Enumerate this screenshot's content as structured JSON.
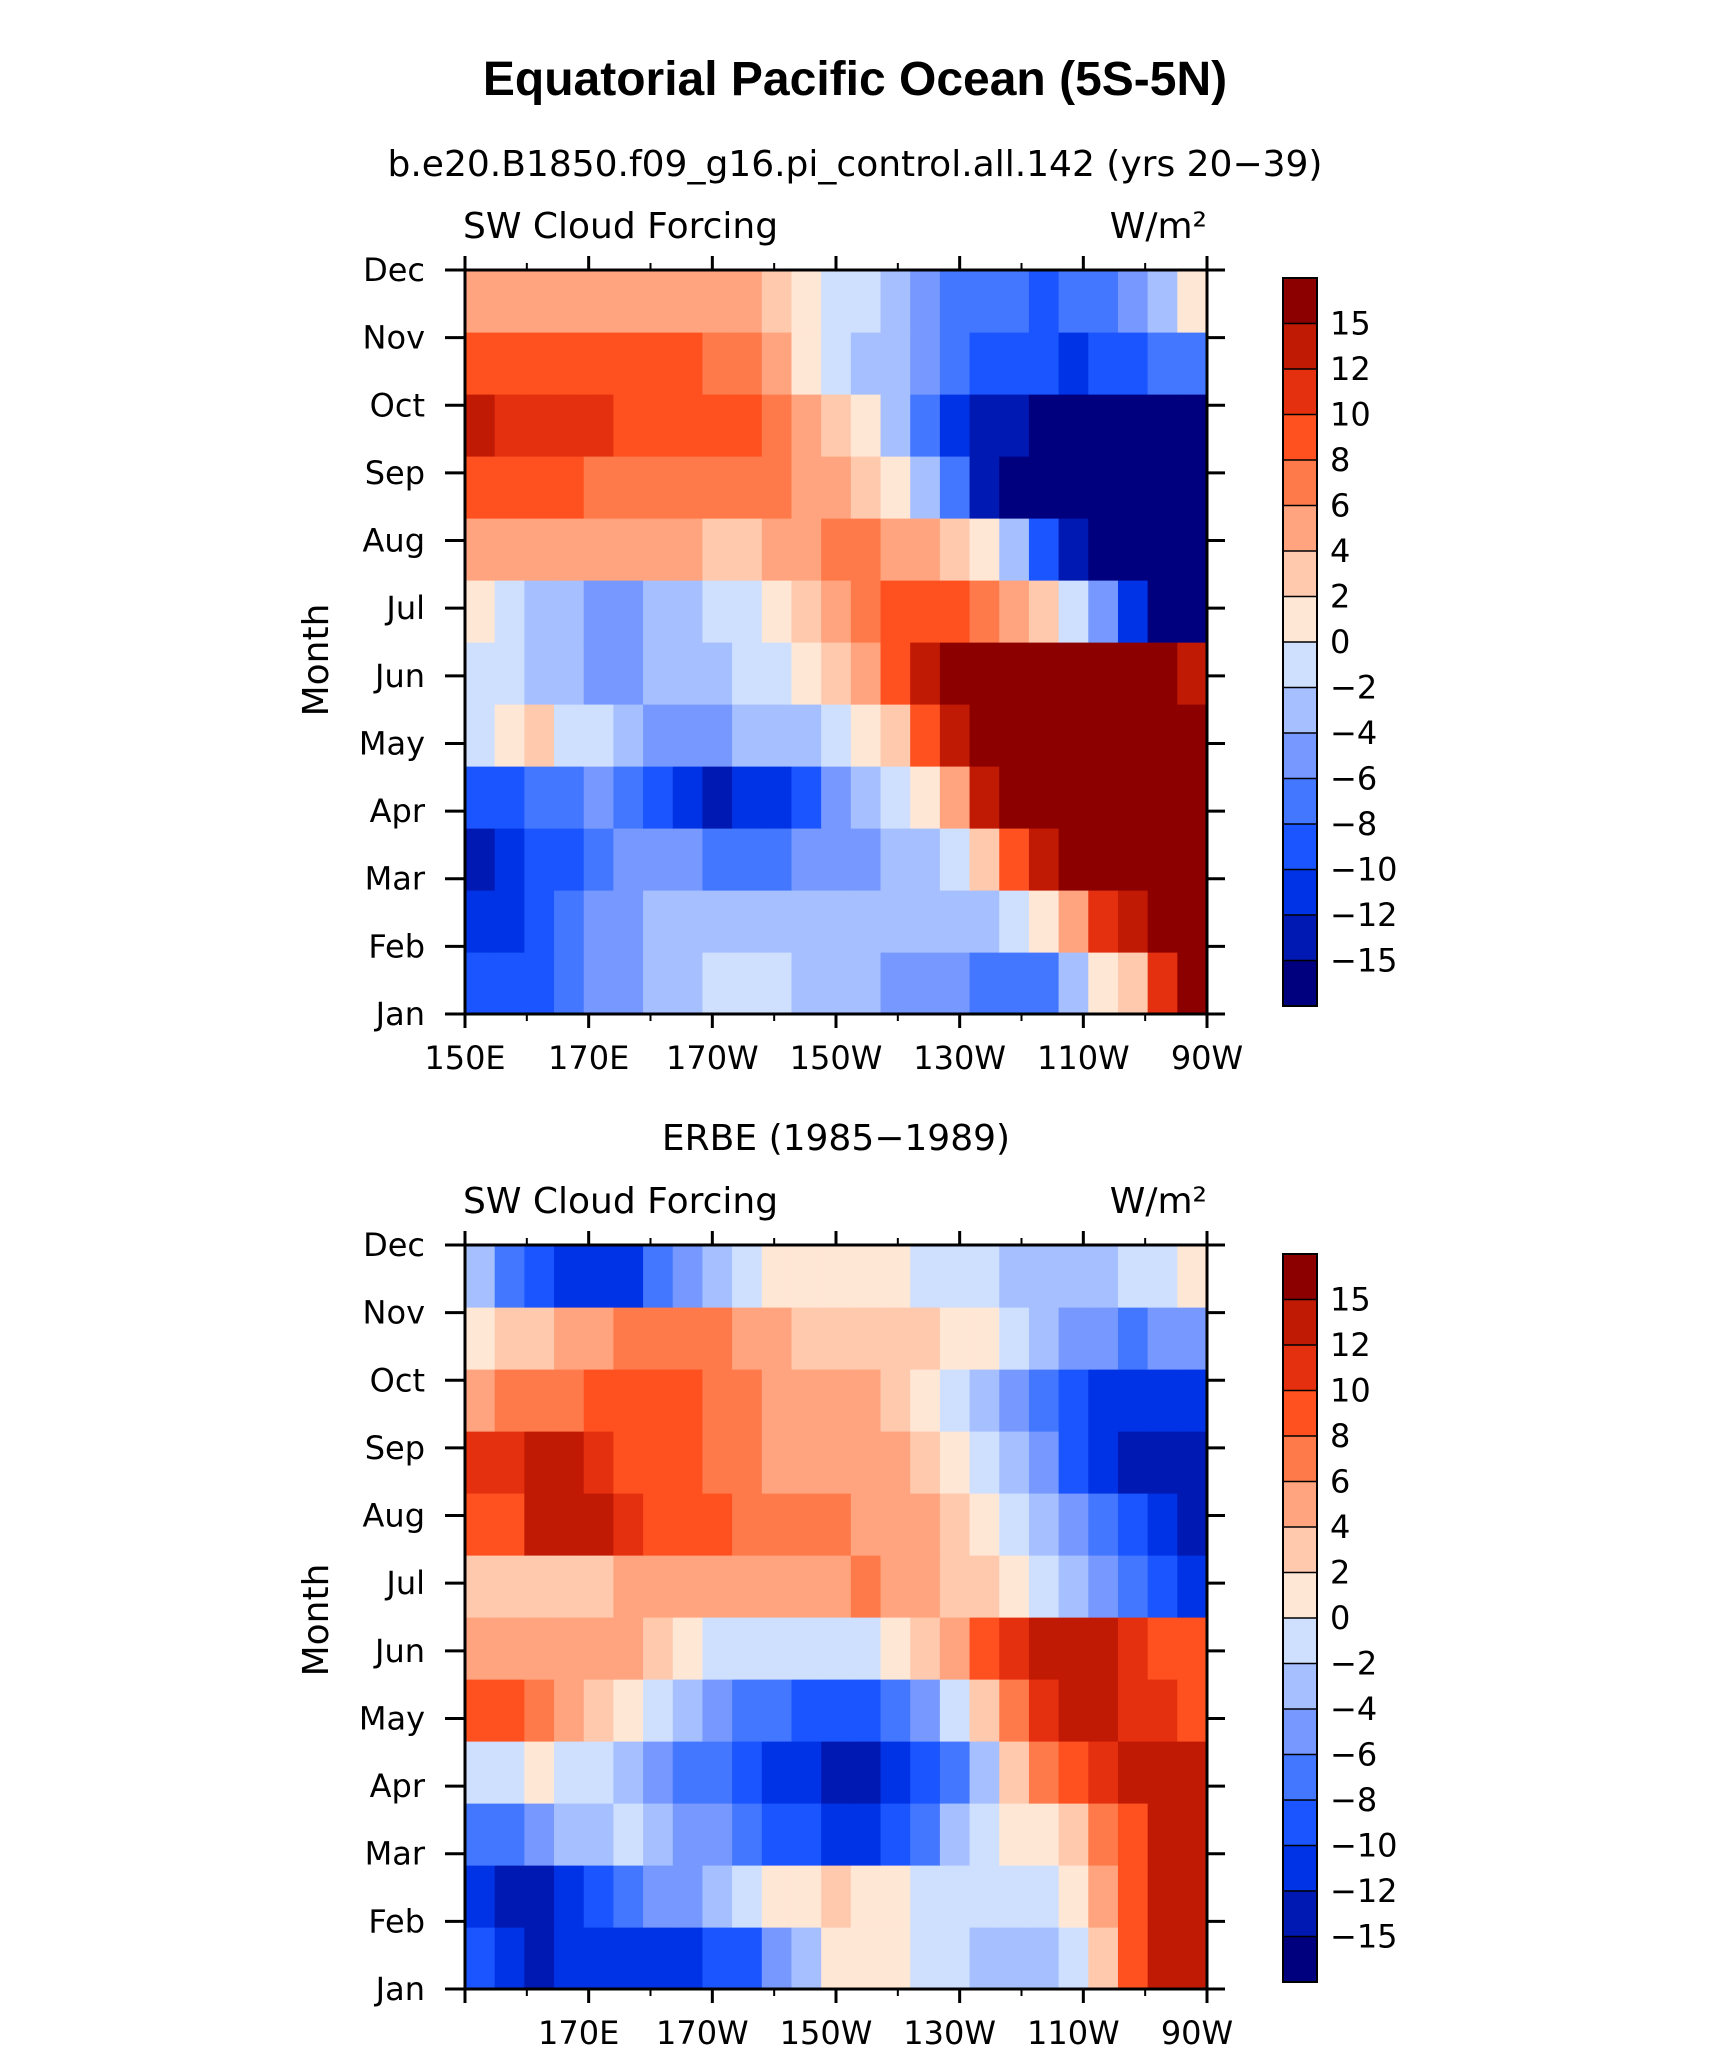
{
  "title": "Equatorial Pacific Ocean (5S-5N)",
  "colorbar": {
    "colors": [
      "#00007F",
      "#0019B2",
      "#0033E5",
      "#1A55FF",
      "#4477FF",
      "#7799FF",
      "#A6BFFF",
      "#CFE0FF",
      "#FFE7D6",
      "#FFC9AE",
      "#FFA47E",
      "#FF7A4A",
      "#FF5020",
      "#E53010",
      "#C01A05",
      "#8C0000"
    ],
    "labels": [
      "15",
      "12",
      "10",
      "8",
      "6",
      "4",
      "2",
      "0",
      "−2",
      "−4",
      "−6",
      "−8",
      "−10",
      "−12",
      "−15"
    ]
  },
  "chart_data": [
    {
      "type": "heatmap",
      "title": "b.e20.B1850.f09_g16.pi_control.all.142 (yrs 20−39)",
      "left_label": "SW Cloud Forcing",
      "right_label": "W/m²",
      "ylabel": "Month",
      "xlabel": "",
      "x_ticks": [
        "150E",
        "170E",
        "170W",
        "150W",
        "130W",
        "110W",
        "90W"
      ],
      "y_ticks": [
        "Jan",
        "Feb",
        "Mar",
        "Apr",
        "May",
        "Jun",
        "Jul",
        "Aug",
        "Sep",
        "Oct",
        "Nov",
        "Dec"
      ],
      "x_lon": [
        150,
        155,
        160,
        165,
        170,
        175,
        180,
        185,
        190,
        195,
        200,
        205,
        210,
        215,
        220,
        225,
        230,
        235,
        240,
        245,
        250,
        255,
        260,
        265,
        270
      ],
      "y_month": [
        "Jan",
        "Feb",
        "Mar",
        "Apr",
        "May",
        "Jun",
        "Jul",
        "Aug",
        "Sep",
        "Oct",
        "Nov",
        "Dec"
      ],
      "values": [
        [
          -10,
          -10,
          -9,
          -8,
          -6,
          -5,
          -4,
          -3,
          -2,
          -1,
          -1,
          -3,
          -3,
          -4,
          -5,
          -5,
          -6,
          -7,
          -8,
          -7,
          -3,
          0,
          2,
          10,
          20
        ],
        [
          -11,
          -11,
          -10,
          -8,
          -6,
          -5,
          -4,
          -3,
          -3,
          -3,
          -3,
          -3,
          -4,
          -4,
          -4,
          -4,
          -3,
          -3,
          -2,
          0,
          5,
          10,
          14,
          18,
          20
        ],
        [
          -13,
          -12,
          -10,
          -9,
          -7,
          -6,
          -6,
          -6,
          -7,
          -7,
          -7,
          -6,
          -6,
          -5,
          -4,
          -3,
          -1,
          2,
          8,
          14,
          17,
          18,
          19,
          20,
          20
        ],
        [
          -9,
          -9,
          -8,
          -7,
          -6,
          -8,
          -9,
          -11,
          -13,
          -12,
          -11,
          -9,
          -6,
          -3,
          -1,
          1,
          4,
          12,
          17,
          19,
          20,
          20,
          20,
          20,
          20
        ],
        [
          -1,
          1,
          2,
          -1,
          -2,
          -4,
          -5,
          -5,
          -5,
          -4,
          -4,
          -3,
          -2,
          0,
          3,
          8,
          14,
          18,
          20,
          20,
          20,
          20,
          20,
          19,
          18
        ],
        [
          -2,
          -2,
          -3,
          -4,
          -5,
          -5,
          -4,
          -3,
          -3,
          -2,
          -1,
          0,
          2,
          5,
          8,
          14,
          17,
          20,
          20,
          20,
          20,
          20,
          20,
          18,
          13
        ],
        [
          0,
          -1,
          -3,
          -4,
          -6,
          -6,
          -4,
          -3,
          -2,
          -1,
          0,
          2,
          4,
          6,
          8,
          8,
          8,
          6,
          4,
          2,
          -2,
          -6,
          -12,
          -16,
          -20
        ],
        [
          4,
          4,
          4,
          4,
          4,
          4,
          4,
          4,
          3,
          3,
          4,
          5,
          6,
          6,
          5,
          4,
          2,
          0,
          -4,
          -10,
          -14,
          -17,
          -18,
          -18,
          -18
        ],
        [
          9,
          9,
          8,
          8,
          7,
          7,
          7,
          7,
          7,
          7,
          6,
          5,
          4,
          2,
          0,
          -3,
          -8,
          -14,
          -17,
          -18,
          -18,
          -18,
          -18,
          -18,
          -18
        ],
        [
          12,
          11,
          10,
          10,
          10,
          9,
          8,
          8,
          8,
          8,
          7,
          5,
          3,
          0,
          -3,
          -8,
          -12,
          -14,
          -15,
          -16,
          -17,
          -18,
          -18,
          -18,
          -18
        ],
        [
          9,
          9,
          9,
          8,
          8,
          8,
          8,
          8,
          7,
          6,
          4,
          1,
          -1,
          -3,
          -4,
          -6,
          -8,
          -9,
          -10,
          -10,
          -11,
          -10,
          -9,
          -8,
          -7
        ],
        [
          4,
          4,
          4,
          4,
          4,
          5,
          5,
          5,
          5,
          4,
          3,
          1,
          -1,
          -2,
          -3,
          -5,
          -7,
          -8,
          -8,
          -9,
          -8,
          -7,
          -5,
          -3,
          0
        ]
      ]
    },
    {
      "type": "heatmap",
      "title": "ERBE (1985−1989)",
      "left_label": "SW Cloud Forcing",
      "right_label": "W/m²",
      "ylabel": "Month",
      "xlabel": "",
      "x_ticks": [
        "170E",
        "170W",
        "150W",
        "130W",
        "110W",
        "90W"
      ],
      "y_ticks": [
        "Jan",
        "Feb",
        "Mar",
        "Apr",
        "May",
        "Jun",
        "Jul",
        "Aug",
        "Sep",
        "Oct",
        "Nov",
        "Dec"
      ],
      "x_lon": [
        150,
        155,
        160,
        165,
        170,
        175,
        180,
        185,
        190,
        195,
        200,
        205,
        210,
        215,
        220,
        225,
        230,
        235,
        240,
        245,
        250,
        255,
        260,
        265,
        270
      ],
      "y_month": [
        "Jan",
        "Feb",
        "Mar",
        "Apr",
        "May",
        "Jun",
        "Jul",
        "Aug",
        "Sep",
        "Oct",
        "Nov",
        "Dec"
      ],
      "values": [
        [
          -9,
          -12,
          -13,
          -12,
          -11,
          -12,
          -12,
          -11,
          -10,
          -9,
          -6,
          -3,
          1,
          1,
          0,
          -2,
          -2,
          -3,
          -3,
          -3,
          -1,
          3,
          9,
          13,
          14
        ],
        [
          -12,
          -13,
          -13,
          -11,
          -9,
          -8,
          -6,
          -5,
          -3,
          -2,
          0,
          1,
          2,
          1,
          0,
          -1,
          -2,
          -2,
          -2,
          -1,
          1,
          4,
          8,
          12,
          14
        ],
        [
          -8,
          -8,
          -6,
          -4,
          -3,
          -2,
          -3,
          -5,
          -6,
          -8,
          -9,
          -10,
          -11,
          -11,
          -10,
          -8,
          -4,
          -1,
          0,
          1,
          3,
          6,
          9,
          12,
          14
        ],
        [
          -2,
          -2,
          0,
          -1,
          -2,
          -3,
          -5,
          -7,
          -8,
          -10,
          -11,
          -12,
          -13,
          -13,
          -12,
          -10,
          -7,
          -3,
          2,
          6,
          9,
          11,
          12,
          13,
          13
        ],
        [
          9,
          8,
          7,
          4,
          2,
          0,
          -2,
          -4,
          -6,
          -7,
          -8,
          -9,
          -10,
          -9,
          -7,
          -5,
          -1,
          3,
          7,
          10,
          12,
          12,
          11,
          10,
          9
        ],
        [
          4,
          4,
          5,
          5,
          5,
          4,
          2,
          0,
          -1,
          -1,
          -1,
          -2,
          -2,
          -1,
          0,
          2,
          5,
          8,
          11,
          13,
          13,
          12,
          10,
          9,
          8
        ],
        [
          2,
          3,
          3,
          3,
          3,
          4,
          5,
          5,
          4,
          4,
          4,
          4,
          5,
          6,
          5,
          4,
          3,
          2,
          0,
          -2,
          -4,
          -6,
          -8,
          -10,
          -12
        ],
        [
          8,
          9,
          13,
          13,
          12,
          11,
          9,
          9,
          8,
          7,
          6,
          6,
          6,
          5,
          5,
          4,
          3,
          1,
          -1,
          -3,
          -6,
          -8,
          -10,
          -12,
          -13
        ],
        [
          10,
          11,
          13,
          13,
          11,
          9,
          9,
          8,
          7,
          6,
          5,
          5,
          5,
          4,
          4,
          3,
          1,
          -1,
          -3,
          -6,
          -9,
          -12,
          -14,
          -15,
          -15
        ],
        [
          5,
          6,
          7,
          7,
          8,
          9,
          9,
          8,
          7,
          6,
          5,
          5,
          5,
          4,
          3,
          1,
          -1,
          -3,
          -5,
          -7,
          -9,
          -11,
          -12,
          -12,
          -12
        ],
        [
          1,
          2,
          3,
          4,
          5,
          6,
          7,
          7,
          6,
          5,
          4,
          3,
          3,
          2,
          2,
          2,
          1,
          0,
          -1,
          -3,
          -5,
          -6,
          -7,
          -6,
          -5
        ],
        [
          -3,
          -7,
          -10,
          -12,
          -12,
          -11,
          -8,
          -5,
          -3,
          -1,
          1,
          1,
          1,
          1,
          0,
          -1,
          -2,
          -2,
          -3,
          -3,
          -3,
          -3,
          -2,
          -1,
          1
        ]
      ]
    }
  ]
}
